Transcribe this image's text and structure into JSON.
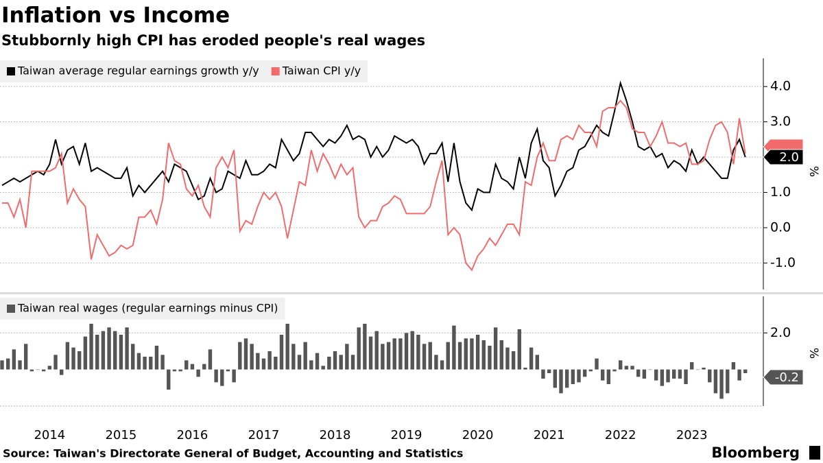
{
  "title": "Inflation vs Income",
  "subtitle": "Stubbornly high CPI has eroded people's real wages",
  "source": "Source: Taiwan's Directorate General of Budget, Accounting and Statistics",
  "brand": "Bloomberg",
  "chart_data": [
    {
      "type": "line",
      "y_label": "%",
      "ylim": [
        -1.75,
        4.8
      ],
      "yticks": [
        {
          "value": -1,
          "label": "-1.0"
        },
        {
          "value": 0,
          "label": "0.0"
        },
        {
          "value": 1,
          "label": "1.0"
        },
        {
          "value": 2,
          "label": "2.0"
        },
        {
          "value": 3,
          "label": "3.0"
        },
        {
          "value": 4,
          "label": "4.0"
        }
      ],
      "grid": true,
      "series": [
        {
          "name": "Taiwan average regular earnings growth y/y",
          "color": "#000000",
          "end_label": "2.0",
          "values": [
            1.2,
            1.3,
            1.4,
            1.3,
            1.4,
            1.5,
            1.6,
            1.5,
            1.8,
            2.5,
            1.8,
            2.2,
            2.3,
            1.8,
            2.4,
            1.6,
            1.7,
            1.6,
            1.5,
            1.4,
            1.4,
            1.7,
            0.9,
            1.2,
            1.0,
            1.2,
            1.4,
            1.6,
            1.3,
            1.8,
            1.7,
            1.6,
            1.2,
            0.8,
            0.9,
            1.4,
            1.0,
            1.1,
            1.6,
            1.5,
            1.4,
            1.9,
            1.5,
            1.5,
            1.6,
            1.8,
            1.7,
            2.5,
            2.2,
            1.9,
            2.1,
            2.7,
            2.7,
            2.5,
            2.3,
            2.5,
            2.4,
            2.6,
            2.9,
            2.5,
            2.6,
            2.5,
            2.0,
            2.3,
            2.0,
            2.2,
            2.6,
            2.5,
            2.4,
            2.5,
            2.3,
            1.8,
            2.1,
            2.1,
            2.4,
            1.3,
            2.4,
            1.3,
            0.7,
            0.5,
            1.1,
            1.0,
            1.0,
            1.8,
            1.4,
            1.3,
            1.1,
            2.0,
            1.4,
            2.4,
            2.8,
            1.9,
            1.7,
            0.9,
            1.2,
            1.6,
            1.7,
            2.2,
            2.3,
            2.6,
            2.9,
            2.7,
            2.6,
            3.3,
            4.1,
            3.6,
            3.0,
            2.3,
            2.2,
            2.3,
            2.0,
            2.1,
            1.7,
            1.9,
            1.8,
            1.6,
            2.2,
            1.8,
            2.0,
            1.8,
            1.6,
            1.4,
            1.4,
            2.2,
            2.5,
            2.0
          ]
        },
        {
          "name": "Taiwan CPI y/y",
          "color": "#f26b6b",
          "values": [
            0.7,
            0.7,
            0.3,
            0.8,
            0.0,
            1.6,
            1.6,
            1.6,
            1.6,
            1.7,
            2.1,
            0.7,
            1.1,
            0.8,
            0.6,
            -0.9,
            -0.2,
            -0.5,
            -0.8,
            -0.7,
            -0.5,
            -0.6,
            -0.5,
            0.3,
            0.3,
            0.5,
            0.1,
            0.8,
            2.4,
            1.9,
            1.8,
            1.1,
            0.9,
            1.2,
            0.6,
            0.3,
            1.7,
            2.0,
            1.7,
            2.2,
            -0.1,
            0.2,
            0.1,
            0.6,
            1.0,
            0.8,
            1.0,
            0.6,
            -0.3,
            0.5,
            1.3,
            1.2,
            2.2,
            1.6,
            2.1,
            1.8,
            1.4,
            1.8,
            1.5,
            1.7,
            0.3,
            0.0,
            0.2,
            0.2,
            0.6,
            0.7,
            0.9,
            0.8,
            0.4,
            0.4,
            0.4,
            0.4,
            0.6,
            1.3,
            1.9,
            -0.2,
            0.0,
            -0.2,
            -1.0,
            -1.2,
            -0.8,
            -0.6,
            -0.3,
            -0.5,
            -0.2,
            0.1,
            0.1,
            -0.2,
            1.3,
            1.2,
            2.0,
            2.4,
            1.9,
            1.9,
            2.5,
            2.6,
            2.5,
            2.9,
            2.7,
            2.7,
            2.3,
            3.3,
            3.4,
            3.4,
            3.6,
            3.4,
            2.8,
            2.7,
            2.7,
            2.3,
            2.6,
            3.0,
            2.4,
            2.4,
            2.3,
            2.4,
            1.8,
            1.8,
            1.9,
            2.5,
            2.9,
            3.0,
            2.7,
            1.8,
            3.1,
            2.1
          ]
        }
      ]
    },
    {
      "type": "bar",
      "y_label": "%",
      "ylim": [
        -2,
        4
      ],
      "yticks": [
        {
          "value": 2,
          "label": "2.0"
        }
      ],
      "grid": true,
      "categories": [
        null,
        null,
        null,
        null,
        null,
        null,
        null,
        null,
        "2014",
        null,
        null,
        null,
        null,
        null,
        null,
        null,
        null,
        null,
        null,
        null,
        "2015",
        null,
        null,
        null,
        null,
        null,
        null,
        null,
        null,
        null,
        null,
        null,
        "2016",
        null,
        null,
        null,
        null,
        null,
        null,
        null,
        null,
        null,
        null,
        null,
        "2017",
        null,
        null,
        null,
        null,
        null,
        null,
        null,
        null,
        null,
        null,
        null,
        "2018",
        null,
        null,
        null,
        null,
        null,
        null,
        null,
        null,
        null,
        null,
        null,
        "2019",
        null,
        null,
        null,
        null,
        null,
        null,
        null,
        null,
        null,
        null,
        null,
        "2020",
        null,
        null,
        null,
        null,
        null,
        null,
        null,
        null,
        null,
        null,
        null,
        "2021",
        null,
        null,
        null,
        null,
        null,
        null,
        null,
        null,
        null,
        null,
        null,
        "2022",
        null,
        null,
        null,
        null,
        null,
        null,
        null,
        null,
        null,
        null,
        null,
        "2023",
        null,
        null,
        null,
        null,
        null,
        null,
        null,
        null,
        null
      ],
      "series": [
        {
          "name": "Taiwan real wages (regular earnings minus CPI)",
          "color": "#555555",
          "end_label": "-0.2",
          "values": [
            0.5,
            0.6,
            1.1,
            0.5,
            1.4,
            -0.1,
            0.0,
            -0.1,
            0.2,
            0.8,
            -0.3,
            1.5,
            1.2,
            1.0,
            1.8,
            2.5,
            1.9,
            2.1,
            2.3,
            2.1,
            1.9,
            2.3,
            1.4,
            0.9,
            0.7,
            0.7,
            1.3,
            0.8,
            -1.1,
            -0.1,
            -0.1,
            0.5,
            0.3,
            -0.4,
            0.3,
            1.1,
            -0.7,
            -0.9,
            -0.1,
            -0.7,
            1.5,
            1.7,
            1.4,
            0.9,
            0.6,
            1.0,
            0.7,
            1.9,
            2.5,
            1.4,
            0.8,
            1.5,
            0.5,
            0.9,
            0.2,
            0.7,
            1.0,
            0.8,
            1.4,
            0.8,
            2.3,
            2.5,
            1.8,
            2.1,
            1.4,
            1.5,
            1.7,
            1.7,
            2.0,
            2.1,
            1.9,
            1.4,
            1.5,
            0.8,
            0.5,
            1.5,
            2.4,
            1.5,
            1.7,
            1.7,
            1.9,
            1.6,
            1.3,
            2.3,
            1.6,
            1.2,
            1.0,
            2.2,
            0.1,
            1.2,
            0.8,
            -0.5,
            -0.2,
            -1.0,
            -1.3,
            -1.0,
            -0.8,
            -0.7,
            -0.4,
            -0.1,
            0.6,
            -0.6,
            -0.8,
            -0.1,
            0.5,
            0.2,
            0.2,
            -0.4,
            -0.5,
            0.0,
            -0.6,
            -0.9,
            -0.7,
            -0.5,
            -0.5,
            -0.8,
            0.4,
            0.0,
            0.1,
            -0.7,
            -1.3,
            -1.6,
            -1.3,
            0.4,
            -0.6,
            -0.2
          ]
        }
      ]
    }
  ]
}
